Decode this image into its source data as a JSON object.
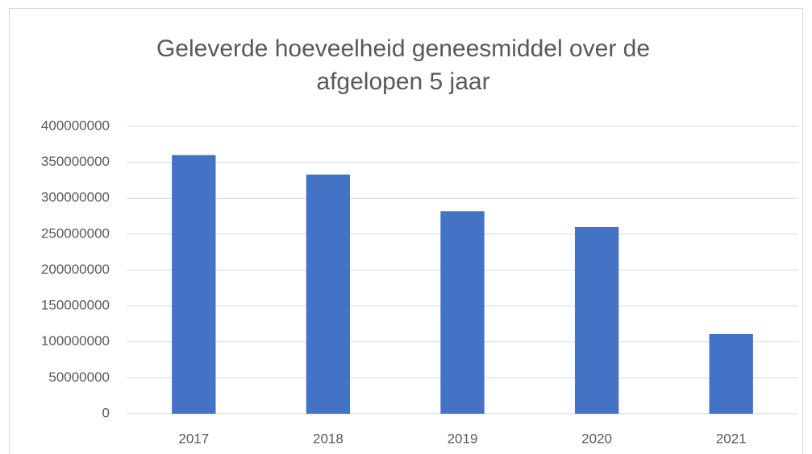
{
  "chart_data": {
    "type": "bar",
    "title": "Geleverde hoeveelheid geneesmiddel over de afgelopen 5 jaar",
    "categories": [
      "2017",
      "2018",
      "2019",
      "2020",
      "2021"
    ],
    "values": [
      360000000,
      333000000,
      282000000,
      260000000,
      111000000
    ],
    "color": "#4472c4",
    "ylim": [
      0,
      400000000
    ],
    "yticks": [
      0,
      50000000,
      100000000,
      150000000,
      200000000,
      250000000,
      300000000,
      350000000,
      400000000
    ],
    "grid": true
  }
}
